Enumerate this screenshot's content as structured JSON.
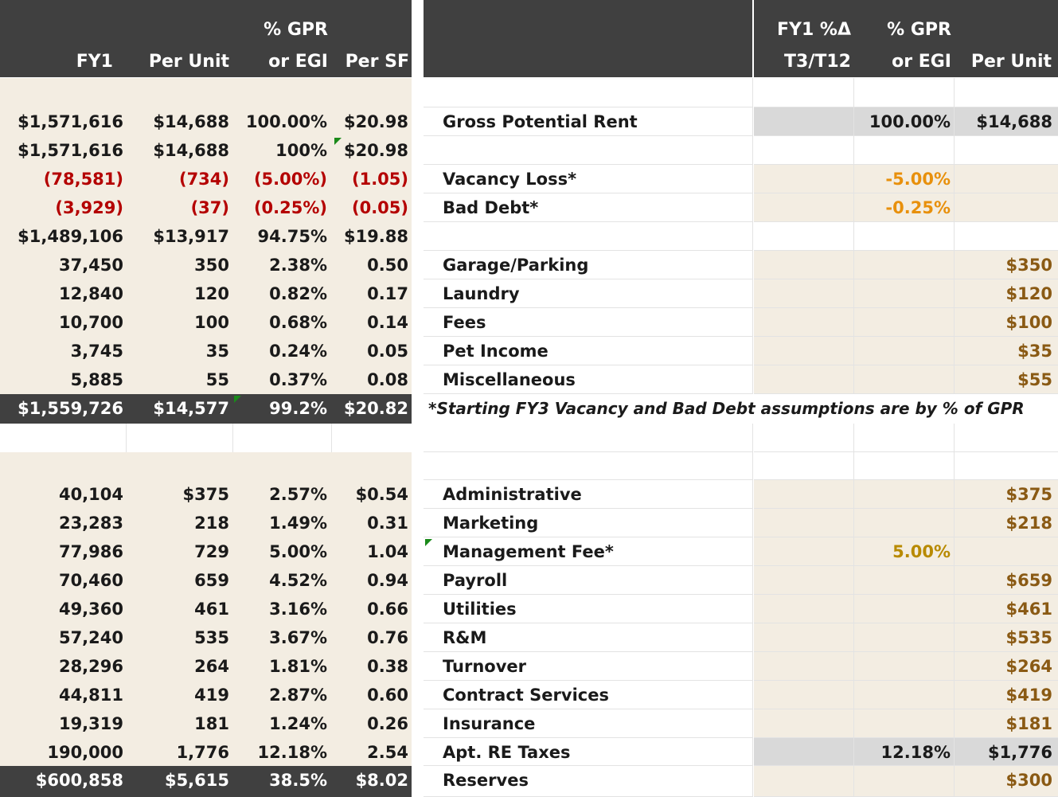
{
  "left": {
    "headers": {
      "fy1": "FY1",
      "per_unit": "Per Unit",
      "pct_line1": "% GPR",
      "pct_line2": "or EGI",
      "per_sf": "Per SF"
    },
    "rows": [
      {
        "fy1": "$1,571,616",
        "per_unit": "$14,688",
        "pct": "100.00%",
        "per_sf": "$20.98"
      },
      {
        "fy1": "$1,571,616",
        "per_unit": "$14,688",
        "pct": "100%",
        "per_sf": "$20.98"
      },
      {
        "fy1": "(78,581)",
        "per_unit": "(734)",
        "pct": "(5.00%)",
        "per_sf": "(1.05)"
      },
      {
        "fy1": "(3,929)",
        "per_unit": "(37)",
        "pct": "(0.25%)",
        "per_sf": "(0.05)"
      },
      {
        "fy1": "$1,489,106",
        "per_unit": "$13,917",
        "pct": "94.75%",
        "per_sf": "$19.88"
      },
      {
        "fy1": "37,450",
        "per_unit": "350",
        "pct": "2.38%",
        "per_sf": "0.50"
      },
      {
        "fy1": "12,840",
        "per_unit": "120",
        "pct": "0.82%",
        "per_sf": "0.17"
      },
      {
        "fy1": "10,700",
        "per_unit": "100",
        "pct": "0.68%",
        "per_sf": "0.14"
      },
      {
        "fy1": "3,745",
        "per_unit": "35",
        "pct": "0.24%",
        "per_sf": "0.05"
      },
      {
        "fy1": "5,885",
        "per_unit": "55",
        "pct": "0.37%",
        "per_sf": "0.08"
      },
      {
        "fy1": "$1,559,726",
        "per_unit": "$14,577",
        "pct": "99.2%",
        "per_sf": "$20.82"
      },
      {
        "fy1": "40,104",
        "per_unit": "$375",
        "pct": "2.57%",
        "per_sf": "$0.54"
      },
      {
        "fy1": "23,283",
        "per_unit": "218",
        "pct": "1.49%",
        "per_sf": "0.31"
      },
      {
        "fy1": "77,986",
        "per_unit": "729",
        "pct": "5.00%",
        "per_sf": "1.04"
      },
      {
        "fy1": "70,460",
        "per_unit": "659",
        "pct": "4.52%",
        "per_sf": "0.94"
      },
      {
        "fy1": "49,360",
        "per_unit": "461",
        "pct": "3.16%",
        "per_sf": "0.66"
      },
      {
        "fy1": "57,240",
        "per_unit": "535",
        "pct": "3.67%",
        "per_sf": "0.76"
      },
      {
        "fy1": "28,296",
        "per_unit": "264",
        "pct": "1.81%",
        "per_sf": "0.38"
      },
      {
        "fy1": "44,811",
        "per_unit": "419",
        "pct": "2.87%",
        "per_sf": "0.60"
      },
      {
        "fy1": "19,319",
        "per_unit": "181",
        "pct": "1.24%",
        "per_sf": "0.26"
      },
      {
        "fy1": "190,000",
        "per_unit": "1,776",
        "pct": "12.18%",
        "per_sf": "2.54"
      },
      {
        "fy1": "$600,858",
        "per_unit": "$5,615",
        "pct": "38.5%",
        "per_sf": "$8.02"
      }
    ]
  },
  "right": {
    "headers": {
      "chg_line1": "FY1 %Δ",
      "chg_line2": "T3/T12",
      "pct_line1": "% GPR",
      "pct_line2": "or EGI",
      "per_unit": "Per Unit"
    },
    "rows": [
      {
        "label": "Gross Potential Rent",
        "pct": "100.00%",
        "per_unit": "$14,688"
      },
      {
        "label": "Vacancy Loss*",
        "pct": "-5.00%",
        "per_unit": ""
      },
      {
        "label": "Bad Debt*",
        "pct": "-0.25%",
        "per_unit": ""
      },
      {
        "label": "Garage/Parking",
        "pct": "",
        "per_unit": "$350"
      },
      {
        "label": "Laundry",
        "pct": "",
        "per_unit": "$120"
      },
      {
        "label": "Fees",
        "pct": "",
        "per_unit": "$100"
      },
      {
        "label": "Pet Income",
        "pct": "",
        "per_unit": "$35"
      },
      {
        "label": "Miscellaneous",
        "pct": "",
        "per_unit": "$55"
      },
      {
        "label": "Administrative",
        "pct": "",
        "per_unit": "$375"
      },
      {
        "label": "Marketing",
        "pct": "",
        "per_unit": "$218"
      },
      {
        "label": "Management Fee*",
        "pct": "5.00%",
        "per_unit": ""
      },
      {
        "label": "Payroll",
        "pct": "",
        "per_unit": "$659"
      },
      {
        "label": "Utilities",
        "pct": "",
        "per_unit": "$461"
      },
      {
        "label": "R&M",
        "pct": "",
        "per_unit": "$535"
      },
      {
        "label": "Turnover",
        "pct": "",
        "per_unit": "$264"
      },
      {
        "label": "Contract Services",
        "pct": "",
        "per_unit": "$419"
      },
      {
        "label": "Insurance",
        "pct": "",
        "per_unit": "$181"
      },
      {
        "label": "Apt. RE Taxes",
        "pct": "12.18%",
        "per_unit": "$1,776"
      },
      {
        "label": "Reserves",
        "pct": "",
        "per_unit": "$300"
      }
    ],
    "note": "*Starting FY3 Vacancy and Bad Debt assumptions are by % of GPR"
  }
}
